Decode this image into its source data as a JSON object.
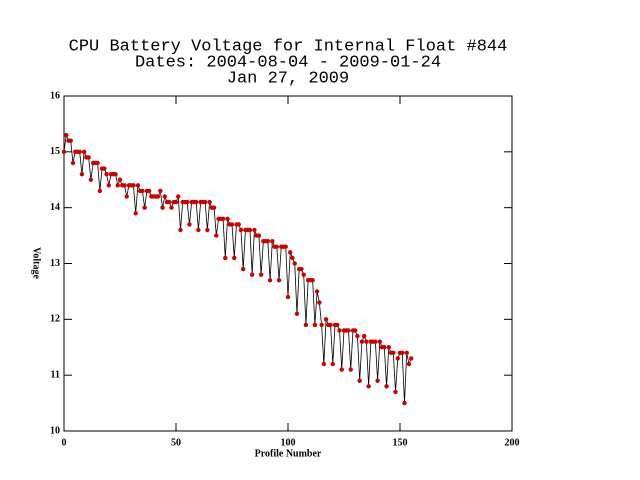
{
  "chart_data": {
    "type": "line",
    "title": [
      "CPU Battery Voltage for Internal Float #844",
      "Dates:  2004-08-04 -  2009-01-24",
      "Jan 27, 2009"
    ],
    "x_label": "Profile Number",
    "y_label": "Voltage",
    "xlim": [
      0,
      200
    ],
    "xticks": [
      0,
      50,
      100,
      150,
      200
    ],
    "ylim": [
      10,
      16
    ],
    "yticks": [
      10,
      11,
      12,
      13,
      14,
      15,
      16
    ],
    "line_color": "#000000",
    "marker_color": "#cc0000",
    "x": [
      0,
      1,
      2,
      3,
      4,
      5,
      6,
      7,
      8,
      9,
      10,
      11,
      12,
      13,
      14,
      15,
      16,
      17,
      18,
      19,
      20,
      21,
      22,
      23,
      24,
      25,
      26,
      27,
      28,
      29,
      30,
      31,
      32,
      33,
      34,
      35,
      36,
      37,
      38,
      39,
      40,
      41,
      42,
      43,
      44,
      45,
      46,
      47,
      48,
      49,
      50,
      51,
      52,
      53,
      54,
      55,
      56,
      57,
      58,
      59,
      60,
      61,
      62,
      63,
      64,
      65,
      66,
      67,
      68,
      69,
      70,
      71,
      72,
      73,
      74,
      75,
      76,
      77,
      78,
      79,
      80,
      81,
      82,
      83,
      84,
      85,
      86,
      87,
      88,
      89,
      90,
      91,
      92,
      93,
      94,
      95,
      96,
      97,
      98,
      99,
      100,
      101,
      102,
      103,
      104,
      105,
      106,
      107,
      108,
      109,
      110,
      111,
      112,
      113,
      114,
      115,
      116,
      117,
      118,
      119,
      120,
      121,
      122,
      123,
      124,
      125,
      126,
      127,
      128,
      129,
      130,
      131,
      132,
      133,
      134,
      135,
      136,
      137,
      138,
      139,
      140,
      141,
      142,
      143,
      144,
      145,
      146,
      147,
      148,
      149,
      150,
      151,
      152,
      153,
      154,
      155
    ],
    "values": [
      15.0,
      15.3,
      15.2,
      15.2,
      14.8,
      15.0,
      15.0,
      15.0,
      14.6,
      15.0,
      14.9,
      14.9,
      14.5,
      14.8,
      14.8,
      14.8,
      14.3,
      14.7,
      14.7,
      14.6,
      14.4,
      14.6,
      14.6,
      14.6,
      14.4,
      14.5,
      14.4,
      14.4,
      14.2,
      14.4,
      14.4,
      14.4,
      13.9,
      14.4,
      14.3,
      14.3,
      14.0,
      14.3,
      14.3,
      14.2,
      14.2,
      14.2,
      14.2,
      14.3,
      14.0,
      14.2,
      14.1,
      14.1,
      14.0,
      14.1,
      14.1,
      14.2,
      13.6,
      14.1,
      14.1,
      14.1,
      13.7,
      14.1,
      14.1,
      14.1,
      13.6,
      14.1,
      14.1,
      14.1,
      13.6,
      14.1,
      14.0,
      14.0,
      13.5,
      13.8,
      13.8,
      13.8,
      13.1,
      13.8,
      13.7,
      13.7,
      13.1,
      13.7,
      13.7,
      13.6,
      12.9,
      13.6,
      13.6,
      13.6,
      12.8,
      13.6,
      13.5,
      13.5,
      12.8,
      13.4,
      13.4,
      13.4,
      12.7,
      13.4,
      13.3,
      13.3,
      12.7,
      13.3,
      13.3,
      13.3,
      12.4,
      13.2,
      13.1,
      13.0,
      12.1,
      12.9,
      12.9,
      12.8,
      11.9,
      12.7,
      12.7,
      12.7,
      11.9,
      12.5,
      12.3,
      11.9,
      11.2,
      12.0,
      11.9,
      11.9,
      11.2,
      11.9,
      11.9,
      11.8,
      11.1,
      11.8,
      11.8,
      11.8,
      11.1,
      11.8,
      11.8,
      11.7,
      10.9,
      11.6,
      11.7,
      11.6,
      10.8,
      11.6,
      11.6,
      11.6,
      10.9,
      11.6,
      11.5,
      11.5,
      10.8,
      11.5,
      11.4,
      11.4,
      10.7,
      11.3,
      11.4,
      11.4,
      10.5,
      11.4,
      11.2,
      11.3
    ]
  }
}
